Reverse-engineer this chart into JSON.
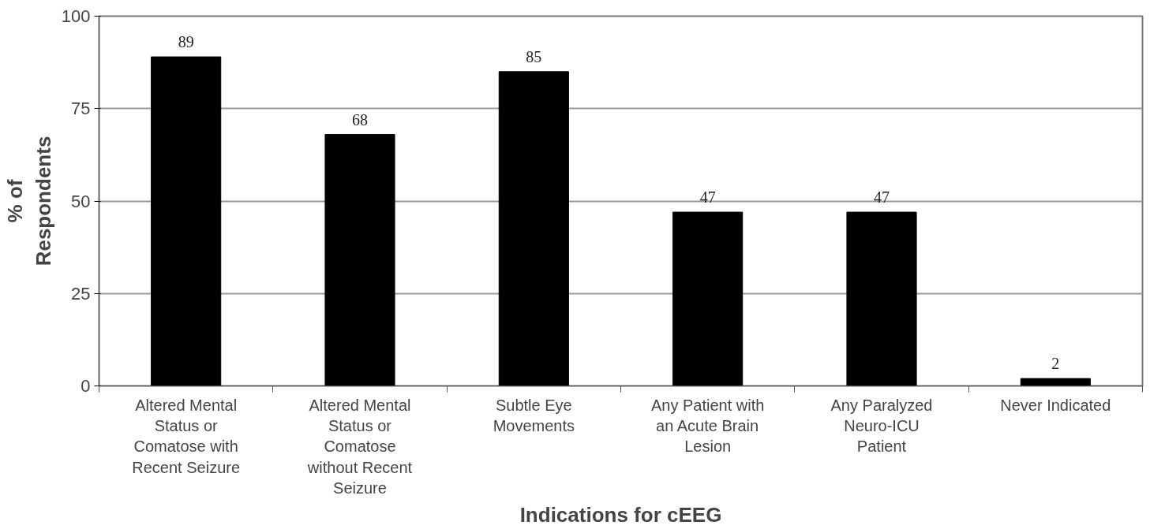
{
  "chart_data": {
    "type": "bar",
    "xlabel": "Indications for cEEG",
    "ylabel": "% of\nRespondents",
    "categories": [
      "Altered Mental\nStatus or\nComatose with\nRecent Seizure",
      "Altered Mental\nStatus or\nComatose\nwithout Recent\nSeizure",
      "Subtle Eye\nMovements",
      "Any Patient with\nan Acute Brain\nLesion",
      "Any Paralyzed\nNeuro-ICU\nPatient",
      "Never Indicated"
    ],
    "values": [
      89,
      68,
      85,
      47,
      47,
      2
    ],
    "color": "#000000",
    "ylim": [
      0,
      100
    ],
    "yticks": [
      0,
      25,
      50,
      75,
      100
    ],
    "grid": "y",
    "data_labels": true
  }
}
